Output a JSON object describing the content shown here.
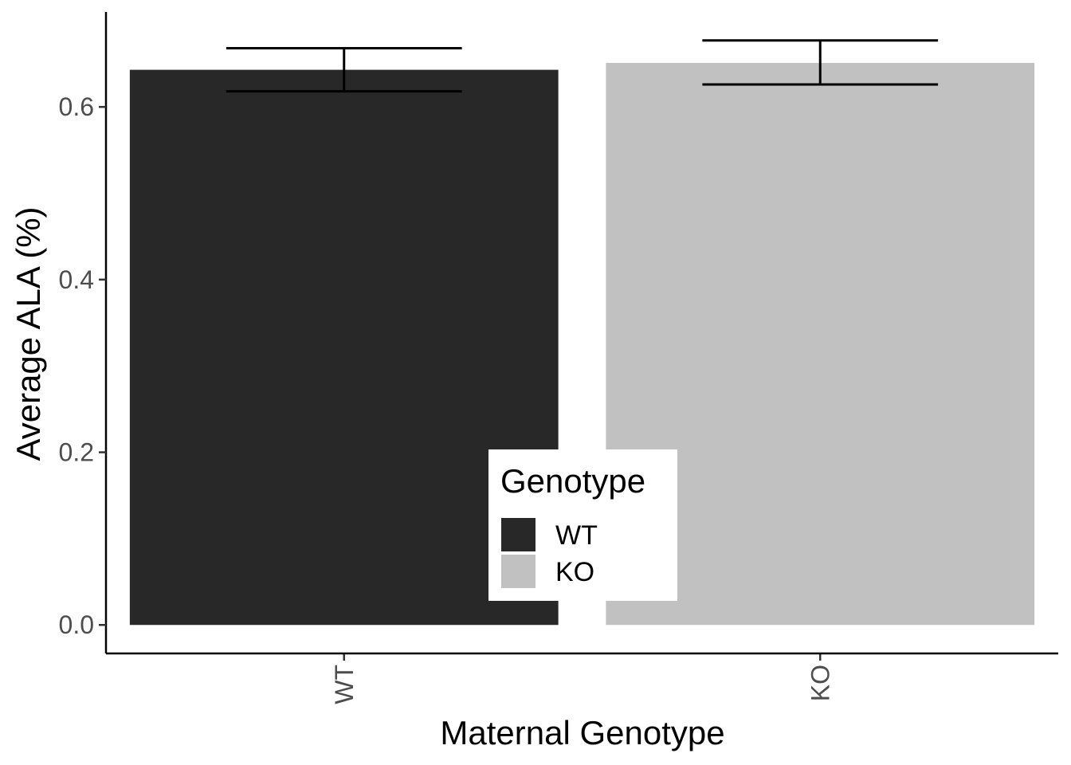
{
  "chart_data": {
    "type": "bar",
    "categories": [
      "WT",
      "KO"
    ],
    "values": [
      0.643,
      0.651
    ],
    "error_bars": [
      {
        "low": 0.618,
        "high": 0.668
      },
      {
        "low": 0.626,
        "high": 0.677
      }
    ],
    "colors": [
      "#282828",
      "#c1c1c1"
    ],
    "title": "",
    "xlabel": "Maternal Genotype",
    "ylabel": "Average ALA (%)",
    "ylim": [
      -0.033,
      0.71
    ],
    "yticks": [
      0.0,
      0.2,
      0.4,
      0.6
    ],
    "ytick_labels": [
      "0.0",
      "0.2",
      "0.4",
      "0.6"
    ],
    "grid": false,
    "legend": {
      "title": "Genotype",
      "placement": "bottom-center",
      "entries": [
        {
          "label": "WT",
          "color": "#282828"
        },
        {
          "label": "KO",
          "color": "#c1c1c1"
        }
      ]
    }
  }
}
